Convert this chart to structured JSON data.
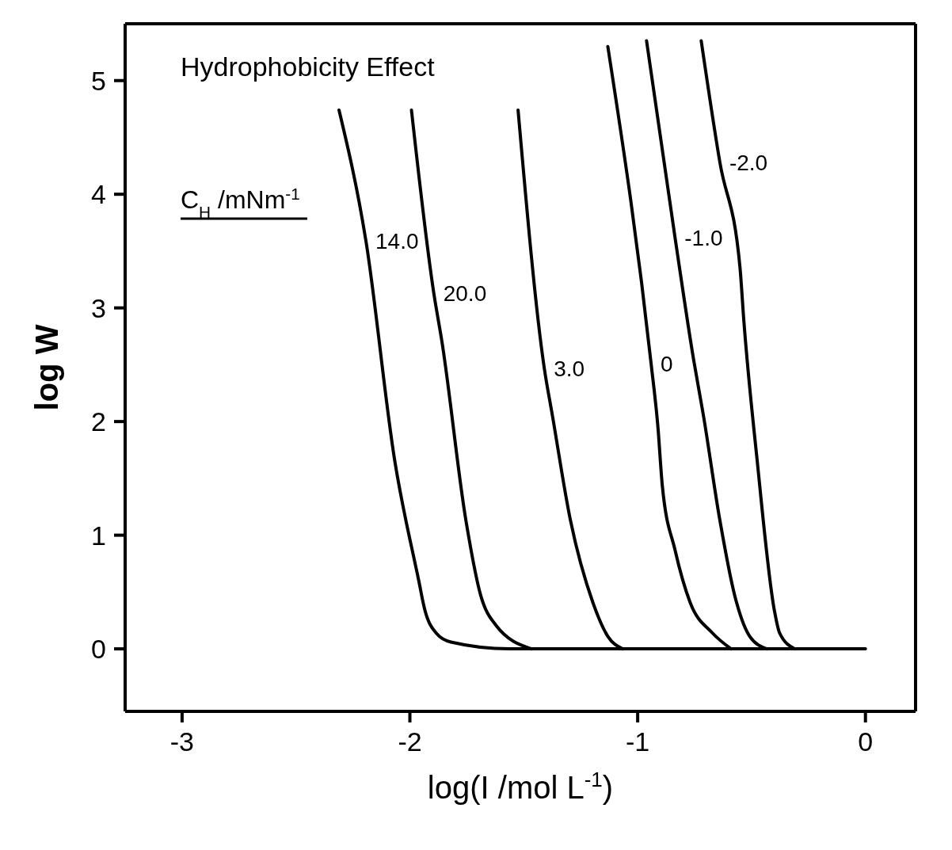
{
  "chart_data": {
    "type": "line",
    "title": "Hydrophobicity Effect",
    "legend_title": "C$_{H}$ /mNm$^{-1}$",
    "xlabel": "log(I /mol L$^{-1}$)",
    "ylabel": "log W",
    "xlim": [
      -3.25,
      0.22
    ],
    "ylim": [
      -0.55,
      5.5
    ],
    "xticks": [
      -3,
      -2,
      -1,
      0
    ],
    "yticks": [
      0,
      1,
      2,
      3,
      4,
      5
    ],
    "legend": false,
    "marker": "none",
    "line_style": "solid",
    "series": [
      {
        "name": "14.0",
        "color": "#000000",
        "x": [
          -2.311,
          -2.193,
          -2.066,
          -1.961,
          -1.934,
          -1.885,
          -1.82,
          -1.564,
          0
        ],
        "values": [
          4.74,
          3.59,
          1.65,
          0.6,
          0.34,
          0.14,
          0.06,
          0,
          0
        ]
      },
      {
        "name": "20.0",
        "color": "#000000",
        "x": [
          -1.993,
          -1.895,
          -1.859,
          -1.754,
          -1.689,
          -1.623,
          -1.466
        ],
        "values": [
          4.74,
          3.13,
          2.7,
          1.13,
          0.47,
          0.21,
          0
        ]
      },
      {
        "name": "3.0",
        "color": "#000000",
        "x": [
          -1.525,
          -1.41,
          -1.374,
          -1.295,
          -1.197,
          -1.131,
          -1.066
        ],
        "values": [
          4.74,
          2.47,
          2.05,
          1.13,
          0.41,
          0.11,
          0
        ]
      },
      {
        "name": "0",
        "color": "#000000",
        "x": [
          -1.131,
          -0.941,
          -0.911,
          -0.892,
          -0.836,
          -0.77,
          -0.672,
          -0.59
        ],
        "values": [
          5.3,
          2.51,
          1.95,
          1.44,
          0.87,
          0.41,
          0.14,
          0
        ]
      },
      {
        "name": "-1.0",
        "color": "#000000",
        "x": [
          -0.961,
          -0.836,
          -0.754,
          -0.711,
          -0.639,
          -0.574,
          -0.508,
          -0.433
        ],
        "values": [
          5.35,
          3.62,
          2.54,
          2.05,
          1.13,
          0.47,
          0.11,
          0
        ]
      },
      {
        "name": "-2.0",
        "color": "#000000",
        "x": [
          -0.721,
          -0.639,
          -0.551,
          -0.534,
          -0.475,
          -0.4,
          -0.377,
          -0.311
        ],
        "values": [
          5.35,
          4.28,
          3.36,
          2.89,
          1.65,
          0.34,
          0.14,
          0
        ]
      }
    ]
  }
}
